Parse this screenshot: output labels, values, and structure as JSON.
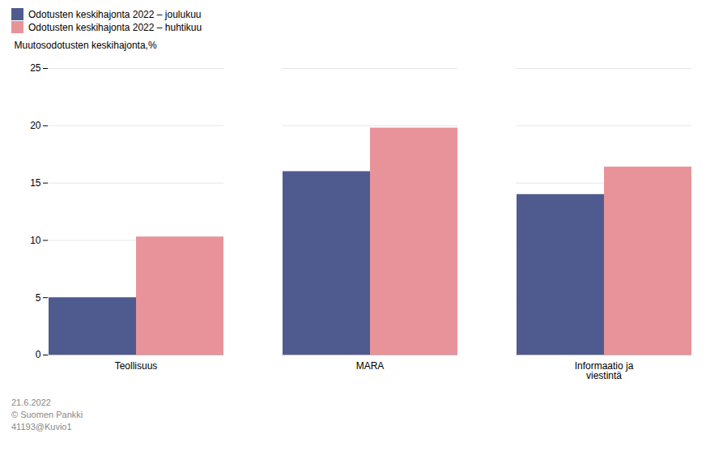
{
  "chart_data": {
    "type": "bar",
    "categories": [
      "Teollisuus",
      "MARA",
      "Informaatio ja\nviestintä"
    ],
    "series": [
      {
        "name": "Odotusten keskihajonta 2022 – joulukuu",
        "color": "#4f5b8e",
        "values": [
          5.0,
          16.0,
          14.0
        ]
      },
      {
        "name": "Odotusten keskihajonta 2022 – huhtikuu",
        "color": "#e8939a",
        "values": [
          10.3,
          19.8,
          16.4
        ]
      }
    ],
    "ylabel": "Muutosodotusten keskihajonta,%",
    "ylim": [
      0,
      25
    ],
    "yticks": [
      0,
      5,
      10,
      15,
      20,
      25
    ],
    "grid": true,
    "annotations": [
      "21.6.2022",
      "© Suomen Pankki",
      "41193@Kuvio1"
    ]
  }
}
